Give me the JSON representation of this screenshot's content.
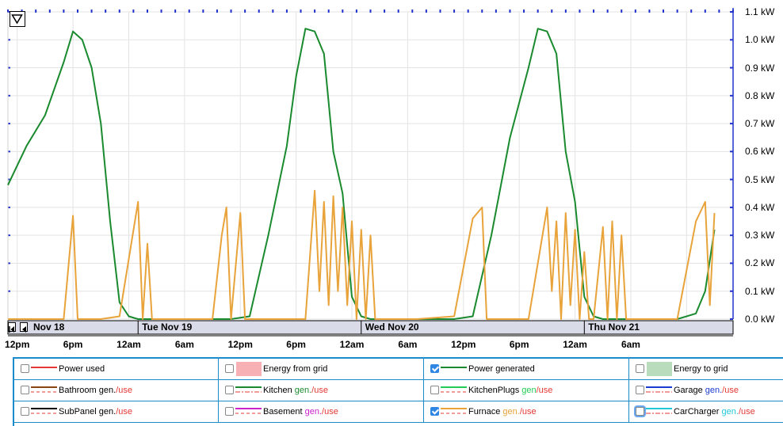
{
  "chart_data": {
    "type": "line",
    "y_axis": {
      "ticks": [
        "1.1 kW",
        "1.0 kW",
        "0.9 kW",
        "0.8 kW",
        "0.7 kW",
        "0.6 kW",
        "0.5 kW",
        "0.4 kW",
        "0.3 kW",
        "0.2 kW",
        "0.1 kW",
        "0.0 kW"
      ],
      "range": [
        0,
        1.1
      ],
      "unit": "kW",
      "side": "right"
    },
    "x_axis": {
      "ticks": [
        "12pm",
        "6pm",
        "12am",
        "6am",
        "12pm",
        "6pm",
        "12am",
        "6am",
        "12pm",
        "6pm",
        "12am",
        "6am"
      ],
      "days": [
        "Nov 18",
        "Tue Nov 19",
        "Wed Nov 20",
        "Thu Nov 21"
      ]
    },
    "grid": true,
    "series": [
      {
        "name": "Power generated",
        "color": "#1a8a2e",
        "points": [
          [
            0,
            0.48
          ],
          [
            2,
            0.62
          ],
          [
            4,
            0.73
          ],
          [
            6,
            0.92
          ],
          [
            7,
            1.03
          ],
          [
            8,
            1.0
          ],
          [
            9,
            0.9
          ],
          [
            10,
            0.7
          ],
          [
            11,
            0.35
          ],
          [
            12,
            0.06
          ],
          [
            13,
            0.01
          ],
          [
            14,
            0
          ],
          [
            18,
            0
          ],
          [
            20,
            0
          ],
          [
            24,
            0
          ],
          [
            26,
            0.01
          ],
          [
            28,
            0.3
          ],
          [
            30,
            0.62
          ],
          [
            31,
            0.87
          ],
          [
            32,
            1.04
          ],
          [
            33,
            1.03
          ],
          [
            34,
            0.95
          ],
          [
            35,
            0.6
          ],
          [
            36,
            0.45
          ],
          [
            37,
            0.08
          ],
          [
            38,
            0.01
          ],
          [
            39,
            0
          ],
          [
            42,
            0
          ],
          [
            48,
            0
          ],
          [
            50,
            0.01
          ],
          [
            52,
            0.3
          ],
          [
            54,
            0.65
          ],
          [
            56,
            0.9
          ],
          [
            57,
            1.04
          ],
          [
            58,
            1.03
          ],
          [
            59,
            0.95
          ],
          [
            60,
            0.6
          ],
          [
            61,
            0.42
          ],
          [
            62,
            0.08
          ],
          [
            63,
            0.01
          ],
          [
            64,
            0
          ],
          [
            66,
            0
          ],
          [
            72,
            0
          ],
          [
            74,
            0.02
          ],
          [
            75,
            0.1
          ],
          [
            76,
            0.32
          ]
        ]
      },
      {
        "name": "Furnace",
        "color": "#e8a33a",
        "points": [
          [
            0,
            0
          ],
          [
            6,
            0
          ],
          [
            7,
            0.37
          ],
          [
            7.5,
            0
          ],
          [
            10,
            0
          ],
          [
            12,
            0.01
          ],
          [
            14,
            0.42
          ],
          [
            14.5,
            0
          ],
          [
            15,
            0.27
          ],
          [
            15.5,
            0
          ],
          [
            16,
            0
          ],
          [
            17,
            0
          ],
          [
            22,
            0
          ],
          [
            23,
            0.3
          ],
          [
            23.5,
            0.4
          ],
          [
            24,
            0
          ],
          [
            25,
            0.38
          ],
          [
            25.5,
            0
          ],
          [
            26,
            0
          ],
          [
            27,
            0
          ],
          [
            32,
            0
          ],
          [
            33,
            0.46
          ],
          [
            33.5,
            0.1
          ],
          [
            34,
            0.42
          ],
          [
            34.5,
            0.05
          ],
          [
            35,
            0.44
          ],
          [
            35.5,
            0.1
          ],
          [
            36,
            0.4
          ],
          [
            36.5,
            0.05
          ],
          [
            37,
            0.35
          ],
          [
            37.5,
            0
          ],
          [
            38,
            0.32
          ],
          [
            38.5,
            0
          ],
          [
            39,
            0.3
          ],
          [
            39.5,
            0
          ],
          [
            40,
            0
          ],
          [
            44,
            0
          ],
          [
            48,
            0.01
          ],
          [
            50,
            0.36
          ],
          [
            51,
            0.4
          ],
          [
            51.5,
            0
          ],
          [
            52,
            0
          ],
          [
            56,
            0
          ],
          [
            58,
            0.4
          ],
          [
            58.5,
            0.1
          ],
          [
            59,
            0.35
          ],
          [
            59.5,
            0
          ],
          [
            60,
            0.38
          ],
          [
            60.5,
            0.05
          ],
          [
            61,
            0.32
          ],
          [
            61.5,
            0
          ],
          [
            62,
            0.24
          ],
          [
            62.5,
            0
          ],
          [
            63,
            0
          ],
          [
            64,
            0.33
          ],
          [
            64.5,
            0
          ],
          [
            65,
            0.35
          ],
          [
            65.5,
            0
          ],
          [
            66,
            0.3
          ],
          [
            66.5,
            0
          ],
          [
            67,
            0
          ],
          [
            72,
            0
          ],
          [
            74,
            0.35
          ],
          [
            75,
            0.42
          ],
          [
            75.5,
            0.05
          ],
          [
            76,
            0.38
          ]
        ]
      }
    ]
  },
  "menu_button": {
    "icon": "triangle-down-icon"
  },
  "legend": {
    "rows": [
      [
        {
          "label": "Power used",
          "checked": false,
          "style": "line",
          "color": "#e53935"
        },
        {
          "label": "Energy from grid",
          "checked": false,
          "style": "area",
          "color": "#f7b0b3"
        },
        {
          "label": "Power generated",
          "checked": true,
          "style": "line",
          "color": "#1a8a2e"
        },
        {
          "label": "Energy to grid",
          "checked": false,
          "style": "area",
          "color": "#b9dcbc"
        }
      ],
      [
        {
          "label": "Bathroom",
          "gen": "gen.",
          "use": "/use",
          "checked": false,
          "color": "#8b4513"
        },
        {
          "label": "Kitchen",
          "gen": "gen.",
          "use": "/use",
          "checked": false,
          "color": "#1a8a2e",
          "gen_color": "#1a8a2e"
        },
        {
          "label": "KitchenPlugs",
          "gen": "gen",
          "use": "/use",
          "checked": false,
          "color": "#22cc55",
          "gen_color": "#22cc55"
        },
        {
          "label": "Garage",
          "gen": "gen.",
          "use": "/use",
          "checked": false,
          "color": "#1a3ad0",
          "gen_color": "#1a3ad0"
        }
      ],
      [
        {
          "label": "SubPanel",
          "gen": "gen.",
          "use": "/use",
          "checked": false,
          "color": "#000000"
        },
        {
          "label": "Basement",
          "gen": "gen.",
          "use": "/use",
          "checked": false,
          "color": "#cc22cc",
          "gen_color": "#cc22cc"
        },
        {
          "label": "Furnace",
          "gen": "gen.",
          "use": "/use",
          "checked": true,
          "color": "#e8a33a",
          "gen_color": "#e8a33a"
        },
        {
          "label": "CarCharger",
          "gen": "gen.",
          "use": "/use",
          "checked": false,
          "focused": true,
          "color": "#22c7d8",
          "gen_color": "#22c7d8"
        }
      ]
    ]
  }
}
